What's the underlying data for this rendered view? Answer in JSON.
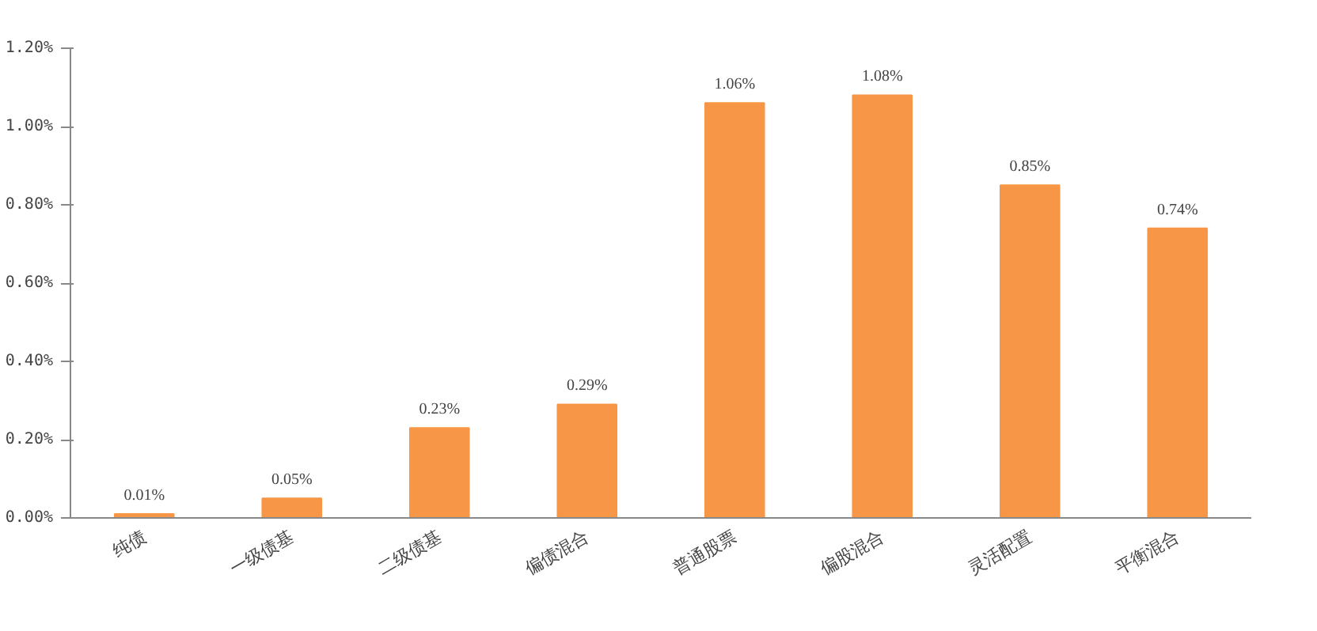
{
  "chart_data": {
    "type": "bar",
    "categories": [
      "纯债",
      "一级债基",
      "二级债基",
      "偏债混合",
      "普通股票",
      "偏股混合",
      "灵活配置",
      "平衡混合"
    ],
    "values": [
      0.01,
      0.05,
      0.23,
      0.29,
      1.06,
      1.08,
      0.85,
      0.74
    ],
    "value_labels": [
      "0.01%",
      "0.05%",
      "0.23%",
      "0.29%",
      "1.06%",
      "1.08%",
      "0.85%",
      "0.74%"
    ],
    "color": "#f79646",
    "ylim": [
      0,
      1.2
    ],
    "yticks": [
      {
        "value": 0,
        "label": "0.00%"
      },
      {
        "value": 0.2,
        "label": "0.20%"
      },
      {
        "value": 0.4,
        "label": "0.40%"
      },
      {
        "value": 0.6,
        "label": "0.60%"
      },
      {
        "value": 0.8,
        "label": "0.80%"
      },
      {
        "value": 1.0,
        "label": "1.00%"
      },
      {
        "value": 1.2,
        "label": "1.20%"
      }
    ],
    "grid": false
  }
}
